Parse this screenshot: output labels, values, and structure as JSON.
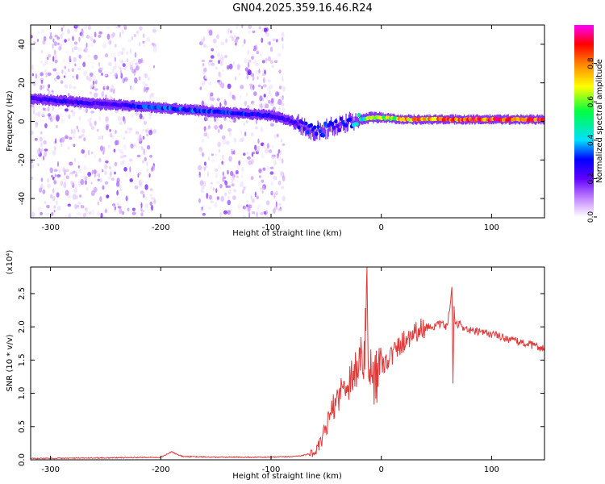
{
  "title": "GN04.2025.359.16.46.R24",
  "colors": {
    "spectrum_background": "#ffffff",
    "signal_trace": "#e03a3a",
    "frame": "#000000"
  },
  "chart_data": [
    {
      "type": "heatmap",
      "title": "GN04.2025.359.16.46.R24",
      "xlabel": "Height of straight line (km)",
      "ylabel": "Frequency (Hz)",
      "xlim": [
        -318,
        148
      ],
      "ylim": [
        -50,
        50
      ],
      "x_ticks": [
        -300,
        -200,
        -100,
        0,
        100
      ],
      "y_ticks": [
        -40,
        -20,
        0,
        20,
        40
      ],
      "grid": false,
      "colorbar": {
        "label": "Normalized spectral amplitude",
        "range": [
          0,
          1
        ],
        "ticks": [
          0.0,
          0.2,
          0.4,
          0.6,
          0.8
        ],
        "colors": [
          "#ffffff",
          "#c080ff",
          "#6000ff",
          "#0000ff",
          "#00e0ff",
          "#00ff40",
          "#ffff00",
          "#ff8000",
          "#ff0000",
          "#ff00ff"
        ]
      },
      "ridge": {
        "x": [
          -318,
          -300,
          -250,
          -200,
          -150,
          -100,
          -80,
          -70,
          -60,
          -50,
          -40,
          -30,
          -20,
          -10,
          0,
          20,
          50,
          100,
          148
        ],
        "y": [
          12,
          11,
          9,
          7,
          5,
          3,
          0,
          -3,
          -5,
          -4,
          -2,
          0,
          1,
          2,
          2,
          1,
          1,
          1,
          1
        ],
        "amplitude": [
          0.25,
          0.3,
          0.25,
          0.4,
          0.35,
          0.3,
          0.25,
          0.3,
          0.35,
          0.35,
          0.3,
          0.35,
          0.5,
          0.6,
          0.65,
          0.7,
          0.8,
          0.85,
          0.85
        ]
      },
      "noise_bands": [
        [
          -318,
          -205
        ],
        [
          -165,
          -88
        ]
      ]
    },
    {
      "type": "line",
      "xlabel": "Height of straight line (km)",
      "ylabel": "SNR (10 * v/v)",
      "y_multiplier": "(x10⁴)",
      "xlim": [
        -318,
        148
      ],
      "ylim": [
        0,
        2.9
      ],
      "x_ticks": [
        -300,
        -200,
        -100,
        0,
        100
      ],
      "y_ticks": [
        0.0,
        0.5,
        1.0,
        1.5,
        2.0,
        2.5
      ],
      "grid": false,
      "series": [
        {
          "x": [
            -318,
            -250,
            -200,
            -195,
            -190,
            -185,
            -180,
            -150,
            -120,
            -100,
            -80,
            -70,
            -60,
            -55,
            -50,
            -45,
            -40,
            -35,
            -30,
            -25,
            -20,
            -15,
            -13,
            -12,
            -10,
            -5,
            0,
            10,
            20,
            30,
            40,
            50,
            55,
            60,
            64,
            65,
            66,
            67,
            70,
            80,
            90,
            100,
            120,
            148
          ],
          "y": [
            0.02,
            0.03,
            0.04,
            0.08,
            0.12,
            0.08,
            0.05,
            0.04,
            0.04,
            0.04,
            0.05,
            0.07,
            0.12,
            0.25,
            0.5,
            0.75,
            0.95,
            1.1,
            1.2,
            1.35,
            1.5,
            1.6,
            2.9,
            1.5,
            1.3,
            1.35,
            1.45,
            1.6,
            1.8,
            1.95,
            2.0,
            2.02,
            2.05,
            2.0,
            2.6,
            1.15,
            2.3,
            2.0,
            2.05,
            1.95,
            1.92,
            1.9,
            1.8,
            1.68
          ]
        }
      ]
    }
  ]
}
